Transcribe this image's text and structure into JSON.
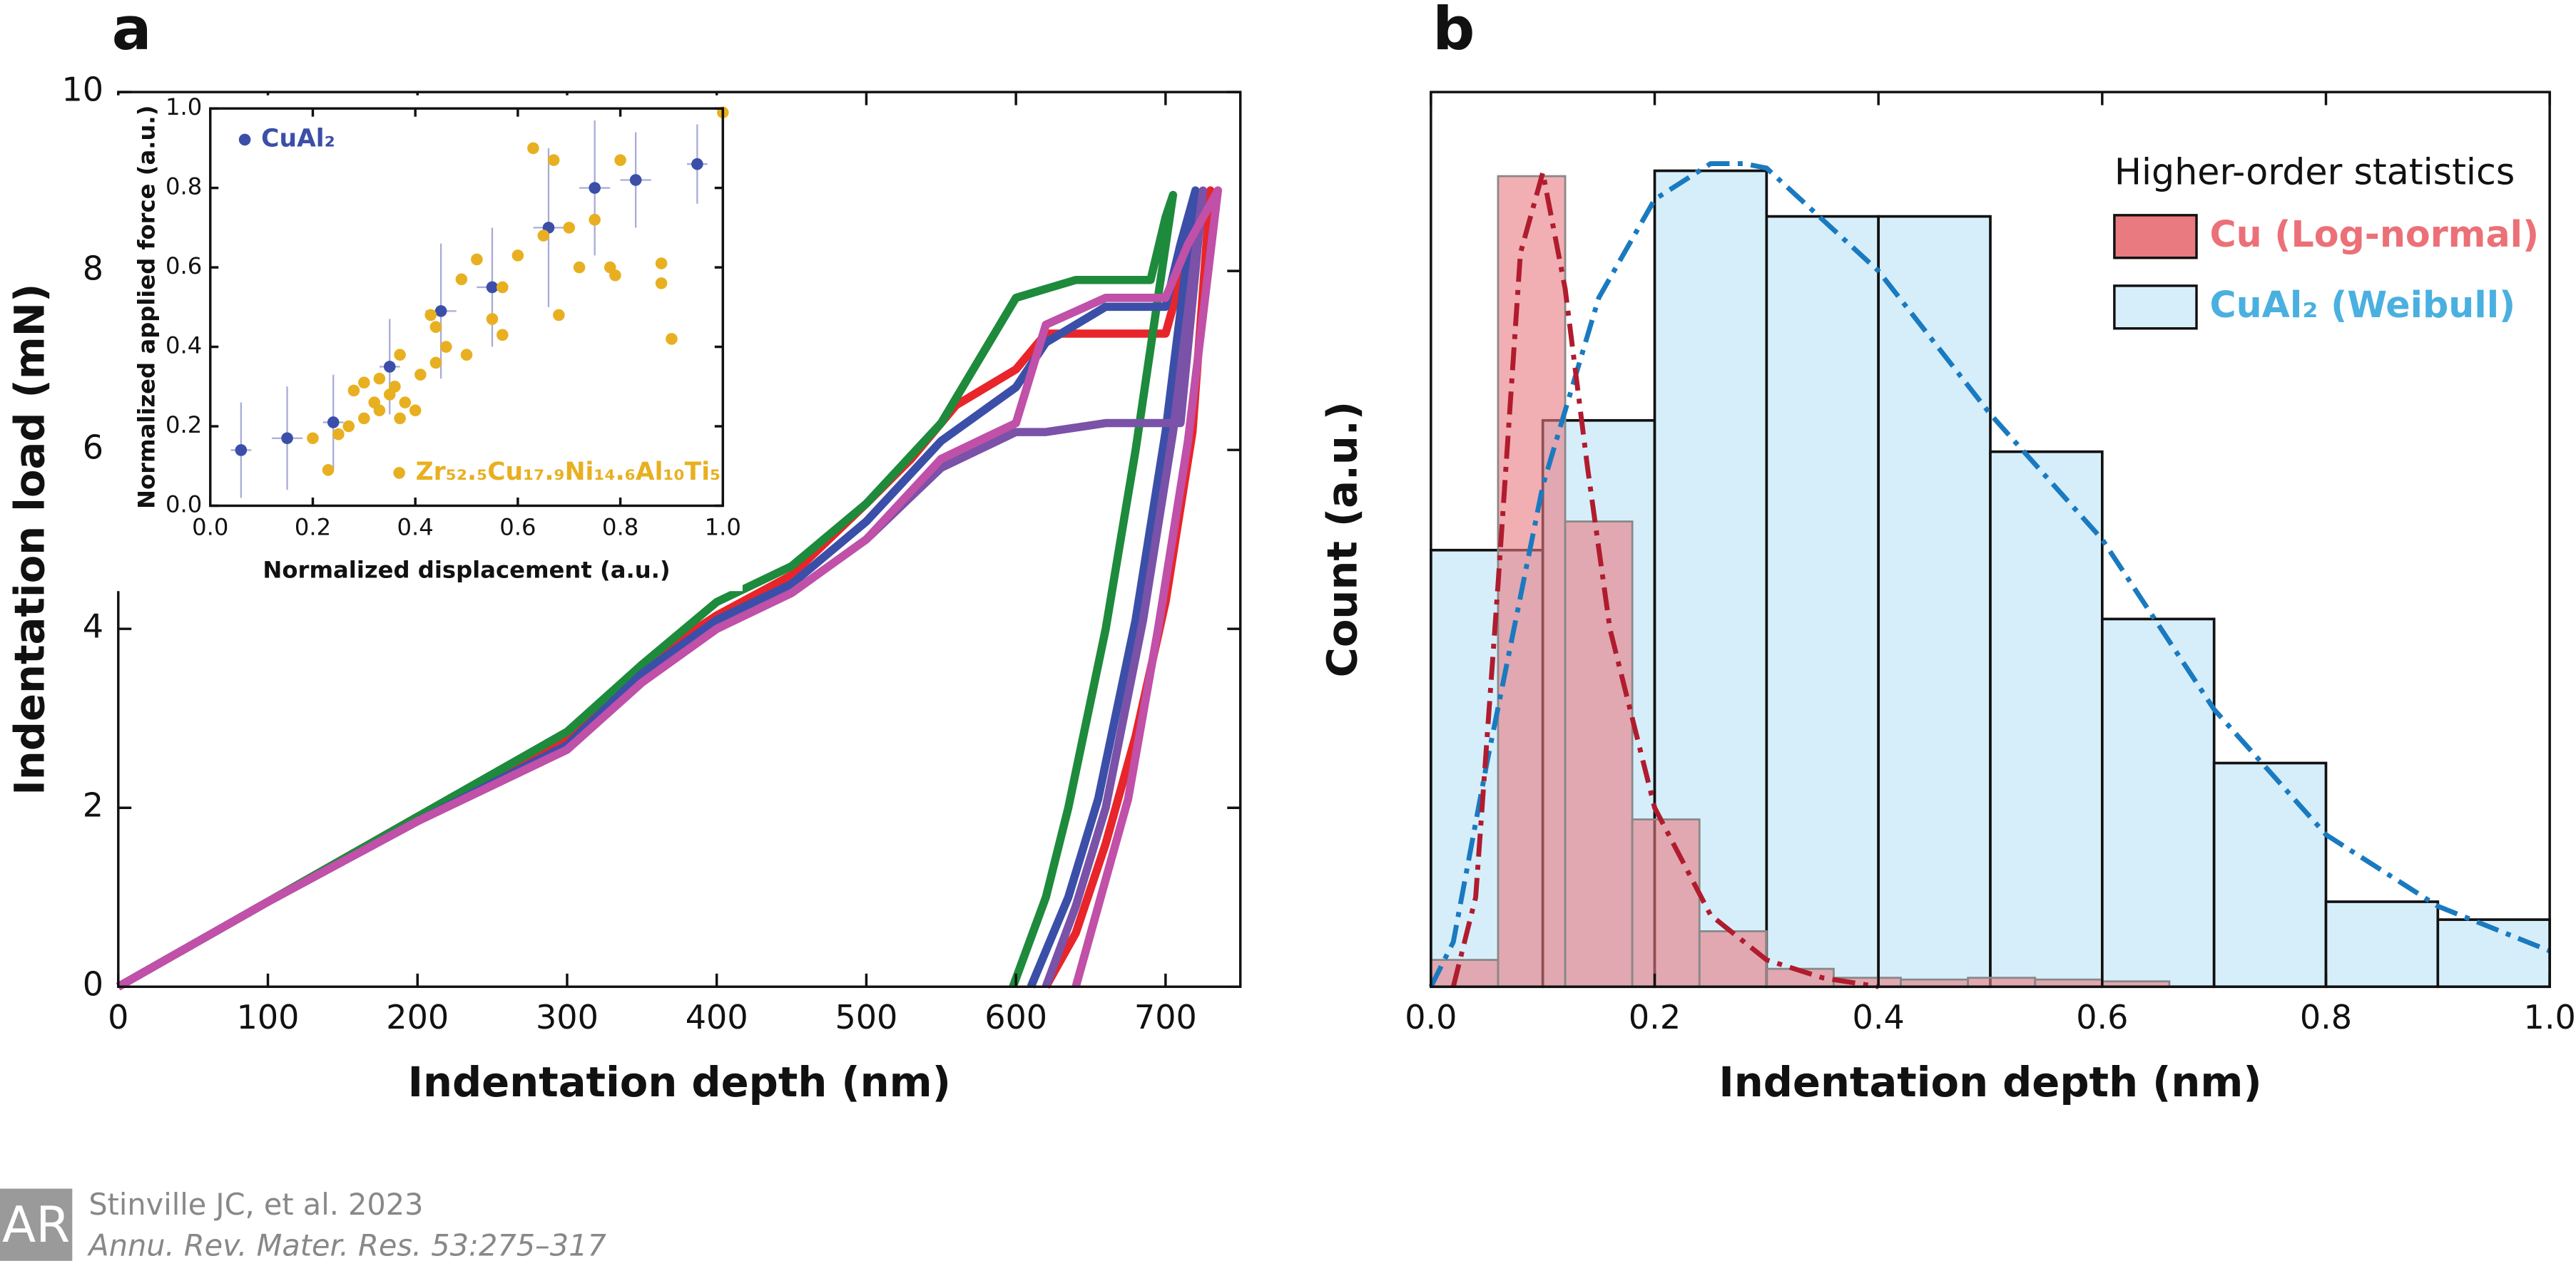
{
  "chart_data": [
    {
      "type": "line",
      "xlabel": "Indentation depth (nm)",
      "ylabel": "Indentation load (mN)",
      "xlim": [
        0,
        750
      ],
      "ylim": [
        0,
        10
      ],
      "xticks": [
        0,
        100,
        200,
        300,
        400,
        500,
        600,
        700
      ],
      "yticks": [
        0,
        2,
        4,
        6,
        8,
        10
      ],
      "series": [
        {
          "color": "#e8252a",
          "x": [
            0,
            100,
            200,
            300,
            350,
            400,
            450,
            500,
            530,
            560,
            600,
            620,
            700,
            715,
            730,
            718,
            700,
            680,
            660,
            640,
            620
          ],
          "values": [
            0,
            0.95,
            1.9,
            2.75,
            3.6,
            4.15,
            4.6,
            5.4,
            5.9,
            6.5,
            6.9,
            7.3,
            7.3,
            8.2,
            8.9,
            6.2,
            4.3,
            2.8,
            1.6,
            0.6,
            0
          ]
        },
        {
          "color": "#1e8a3c",
          "x": [
            0,
            100,
            200,
            300,
            350,
            400,
            450,
            500,
            550,
            600,
            620,
            640,
            690,
            700,
            705,
            680,
            660,
            635,
            620,
            598
          ],
          "values": [
            0,
            0.95,
            1.9,
            2.85,
            3.6,
            4.3,
            4.7,
            5.4,
            6.3,
            7.7,
            7.8,
            7.9,
            7.9,
            8.6,
            8.85,
            6,
            4,
            2,
            1,
            0
          ]
        },
        {
          "color": "#3b4fa8",
          "x": [
            0,
            100,
            200,
            300,
            350,
            400,
            450,
            500,
            550,
            600,
            620,
            660,
            700,
            710,
            720,
            700,
            680,
            655,
            635,
            610
          ],
          "values": [
            0,
            0.95,
            1.85,
            2.7,
            3.5,
            4.1,
            4.5,
            5.2,
            6.1,
            6.7,
            7.2,
            7.6,
            7.6,
            8.3,
            8.9,
            6.2,
            4.1,
            2.1,
            1,
            0
          ]
        },
        {
          "color": "#7a52a8",
          "x": [
            0,
            100,
            200,
            300,
            350,
            400,
            450,
            500,
            550,
            600,
            620,
            660,
            710,
            720,
            725,
            705,
            685,
            660,
            640,
            620
          ],
          "values": [
            0,
            0.95,
            1.85,
            2.65,
            3.4,
            4,
            4.4,
            5,
            5.8,
            6.2,
            6.2,
            6.3,
            6.3,
            8,
            8.9,
            6.2,
            4.1,
            2,
            0.9,
            0
          ]
        },
        {
          "color": "#c050a8",
          "x": [
            0,
            100,
            200,
            300,
            350,
            400,
            450,
            500,
            550,
            600,
            620,
            660,
            700,
            715,
            735,
            715,
            695,
            675,
            655,
            640
          ],
          "values": [
            0,
            0.95,
            1.85,
            2.65,
            3.4,
            4,
            4.4,
            5,
            5.9,
            6.3,
            7.4,
            7.7,
            7.7,
            8.3,
            8.9,
            6.1,
            4,
            2.1,
            0.9,
            0
          ]
        }
      ]
    },
    {
      "type": "scatter",
      "xlabel": "Normalized displacement (a.u.)",
      "ylabel": "Normalized applied force (a.u.)",
      "xlim": [
        0,
        1
      ],
      "ylim": [
        0,
        1
      ],
      "xticks": [
        {
          "value": 0,
          "label": "0.0"
        },
        {
          "value": 0.2,
          "label": "0.2"
        },
        {
          "value": 0.4,
          "label": "0.4"
        },
        {
          "value": 0.6,
          "label": "0.6"
        },
        {
          "value": 0.8,
          "label": "0.8"
        },
        {
          "value": 1,
          "label": "1.0"
        }
      ],
      "yticks": [
        {
          "value": 0,
          "label": "0.0"
        },
        {
          "value": 0.2,
          "label": "0.2"
        },
        {
          "value": 0.4,
          "label": "0.4"
        },
        {
          "value": 0.6,
          "label": "0.6"
        },
        {
          "value": 0.8,
          "label": "0.8"
        },
        {
          "value": 1,
          "label": "1.0"
        }
      ],
      "series": [
        {
          "name": "CuAl₂",
          "color": "#3b4fa8",
          "x": [
            0.06,
            0.15,
            0.24,
            0.35,
            0.45,
            0.55,
            0.66,
            0.75,
            0.83,
            0.95
          ],
          "values": [
            0.14,
            0.17,
            0.21,
            0.35,
            0.49,
            0.55,
            0.7,
            0.8,
            0.82,
            0.86
          ],
          "yerr": [
            0.12,
            0.13,
            0.12,
            0.12,
            0.17,
            0.15,
            0.2,
            0.17,
            0.12,
            0.1
          ],
          "xerr": [
            0.02,
            0.03,
            0.02,
            0.02,
            0.03,
            0.03,
            0.03,
            0.03,
            0.03,
            0.02
          ]
        },
        {
          "name": "Zr₅₂.₅Cu₁₇.₉Ni₁₄.₆Al₁₀Ti₅",
          "color": "#e8b020",
          "x": [
            0.23,
            0.2,
            0.25,
            0.27,
            0.28,
            0.3,
            0.3,
            0.32,
            0.33,
            0.33,
            0.35,
            0.36,
            0.37,
            0.38,
            0.37,
            0.4,
            0.41,
            0.43,
            0.44,
            0.44,
            0.46,
            0.49,
            0.5,
            0.52,
            0.55,
            0.57,
            0.57,
            0.6,
            0.63,
            0.65,
            0.67,
            0.68,
            0.7,
            0.72,
            0.75,
            0.78,
            0.79,
            0.8,
            0.88,
            0.88,
            0.9,
            1.0
          ],
          "values": [
            0.09,
            0.17,
            0.18,
            0.2,
            0.29,
            0.22,
            0.31,
            0.26,
            0.24,
            0.32,
            0.28,
            0.3,
            0.22,
            0.26,
            0.38,
            0.24,
            0.33,
            0.48,
            0.36,
            0.45,
            0.4,
            0.57,
            0.38,
            0.62,
            0.47,
            0.43,
            0.55,
            0.63,
            0.9,
            0.68,
            0.87,
            0.48,
            0.7,
            0.6,
            0.72,
            0.6,
            0.58,
            0.87,
            0.56,
            0.61,
            0.42,
            0.99
          ]
        }
      ]
    },
    {
      "type": "histogram",
      "xlabel": "Indentation depth (nm)",
      "ylabel": "Count (a.u.)",
      "legend_title": "Higher-order statistics",
      "xlim": [
        0,
        1
      ],
      "ylim": [
        0,
        1
      ],
      "xticks": [
        {
          "value": 0,
          "label": "0.0"
        },
        {
          "value": 0.2,
          "label": "0.2"
        },
        {
          "value": 0.4,
          "label": "0.4"
        },
        {
          "value": 0.6,
          "label": "0.6"
        },
        {
          "value": 0.8,
          "label": "0.8"
        },
        {
          "value": 1,
          "label": "1.0"
        }
      ],
      "series": [
        {
          "name": "CuAl₂ (Weibull)",
          "color": "#d6eefa",
          "text_color": "#4ab0e0",
          "bins": [
            0,
            0.1,
            0.2,
            0.3,
            0.4,
            0.5,
            0.6,
            0.7,
            0.8,
            0.9,
            1.0
          ],
          "values": [
            0.488,
            0.633,
            0.912,
            0.861,
            0.861,
            0.598,
            0.411,
            0.25,
            0.095,
            0.075
          ],
          "fit": {
            "color": "#1a7ac0",
            "x": [
              0,
              0.02,
              0.05,
              0.1,
              0.15,
              0.2,
              0.25,
              0.28,
              0.3,
              0.4,
              0.5,
              0.6,
              0.7,
              0.8,
              0.9,
              1.0
            ],
            "values": [
              0,
              0.05,
              0.25,
              0.56,
              0.77,
              0.88,
              0.92,
              0.92,
              0.915,
              0.8,
              0.64,
              0.5,
              0.31,
              0.17,
              0.09,
              0.04
            ]
          }
        },
        {
          "name": "Cu (Log-normal)",
          "color": "#e87a80",
          "text_color": "#ec7077",
          "bins": [
            0,
            0.06,
            0.12,
            0.18,
            0.24,
            0.3,
            0.36,
            0.42,
            0.48,
            0.54,
            0.6,
            0.66
          ],
          "values": [
            0.03,
            0.906,
            0.52,
            0.187,
            0.062,
            0.02,
            0.01,
            0.008,
            0.01,
            0.008,
            0.006
          ],
          "fit": {
            "color": "#b01c2e",
            "x": [
              0.02,
              0.04,
              0.06,
              0.08,
              0.1,
              0.12,
              0.14,
              0.16,
              0.2,
              0.25,
              0.3,
              0.35,
              0.4
            ],
            "values": [
              0,
              0.1,
              0.45,
              0.82,
              0.91,
              0.78,
              0.58,
              0.4,
              0.2,
              0.08,
              0.03,
              0.01,
              0
            ]
          }
        }
      ]
    }
  ],
  "panel_labels": [
    "a",
    "b"
  ],
  "footer": {
    "logo": "AR",
    "citation": "Stinville JC, et al. 2023",
    "journal": "Annu. Rev. Mater. Res. 53:275–317"
  }
}
